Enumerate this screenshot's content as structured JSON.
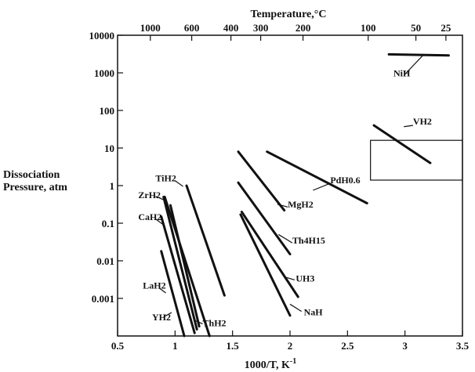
{
  "chart_data": {
    "type": "line",
    "title": "",
    "xlabel": "1000/T, K",
    "xlabel_superscript": "-1",
    "top_xlabel": "Temperature,°C",
    "ylabel_lines": [
      "Dissociation",
      "Pressure, atm"
    ],
    "xlim": [
      0.5,
      3.5
    ],
    "ylim_log10": [
      -4,
      4
    ],
    "y_scale": "log",
    "grid": false,
    "x_ticks": [
      "0.5",
      "1",
      "1.5",
      "2",
      "2.5",
      "3",
      "3.5"
    ],
    "x_tick_values": [
      0.5,
      1,
      1.5,
      2,
      2.5,
      3,
      3.5
    ],
    "y_ticks": [
      "10000",
      "1000",
      "100",
      "10",
      "1",
      "0.1",
      "0.01",
      "0.001"
    ],
    "y_tick_values": [
      10000,
      1000,
      100,
      10,
      1,
      0.1,
      0.01,
      0.001
    ],
    "top_ticks": [
      {
        "label": "1000",
        "x": 0.785
      },
      {
        "label": "600",
        "x": 1.145
      },
      {
        "label": "400",
        "x": 1.486
      },
      {
        "label": "300",
        "x": 1.745
      },
      {
        "label": "200",
        "x": 2.113
      },
      {
        "label": "100",
        "x": 2.68
      },
      {
        "label": "50",
        "x": 3.095
      },
      {
        "label": "25",
        "x": 3.356
      }
    ],
    "series": [
      {
        "name": "NiH",
        "points": [
          [
            2.86,
            3100
          ],
          [
            3.38,
            2900
          ]
        ],
        "label_at": [
          2.9,
          800
        ],
        "leader": [
          [
            3.0,
            920
          ],
          [
            3.16,
            3000
          ]
        ]
      },
      {
        "name": "VH2",
        "points": [
          [
            2.73,
            40
          ],
          [
            3.22,
            4
          ]
        ],
        "label_at": [
          3.07,
          42
        ],
        "leader": [
          [
            2.99,
            37
          ],
          [
            3.07,
            40
          ]
        ]
      },
      {
        "name": "PdH0.6",
        "points": [
          [
            1.8,
            8
          ],
          [
            2.67,
            0.34
          ]
        ],
        "label_at": [
          2.35,
          1.15
        ],
        "leader": [
          [
            2.2,
            0.75
          ],
          [
            2.35,
            1.15
          ]
        ]
      },
      {
        "name": "MgH2",
        "points": [
          [
            1.55,
            8
          ],
          [
            1.95,
            0.22
          ]
        ],
        "label_at": [
          1.98,
          0.26
        ],
        "leader": [
          [
            1.89,
            0.32
          ],
          [
            1.98,
            0.27
          ]
        ]
      },
      {
        "name": "Th4H15",
        "points": [
          [
            1.55,
            1.2
          ],
          [
            2.0,
            0.015
          ]
        ],
        "label_at": [
          2.02,
          0.029
        ],
        "leader": [
          [
            1.9,
            0.05
          ],
          [
            2.02,
            0.03
          ]
        ]
      },
      {
        "name": "UH3",
        "points": [
          [
            1.58,
            0.2
          ],
          [
            2.07,
            0.0011
          ]
        ],
        "label_at": [
          2.05,
          0.0028
        ],
        "leader": [
          [
            1.97,
            0.0036
          ],
          [
            2.04,
            0.0031
          ]
        ]
      },
      {
        "name": "NaH",
        "points": [
          [
            1.57,
            0.17
          ],
          [
            2.0,
            0.00035
          ]
        ],
        "label_at": [
          2.12,
          0.00036
        ],
        "leader": [
          [
            2.0,
            0.0007
          ],
          [
            2.1,
            0.00045
          ]
        ]
      },
      {
        "name": "TiH2",
        "points": [
          [
            1.1,
            1.0
          ],
          [
            1.43,
            0.0012
          ]
        ],
        "label_at": [
          0.83,
          1.3
        ],
        "leader": [
          [
            1.0,
            1.35
          ],
          [
            1.07,
            0.95
          ]
        ]
      },
      {
        "name": "ZrH2",
        "points": [
          [
            0.9,
            0.5
          ],
          [
            1.19,
            0.00015
          ]
        ],
        "label_at": [
          0.68,
          0.46
        ],
        "leader": [
          [
            0.83,
            0.52
          ],
          [
            0.9,
            0.42
          ]
        ]
      },
      {
        "name": "CaH2",
        "points": [
          [
            0.88,
            0.15
          ],
          [
            1.17,
            0.00012
          ]
        ],
        "label_at": [
          0.68,
          0.12
        ],
        "leader": [
          [
            0.83,
            0.13
          ],
          [
            0.9,
            0.09
          ]
        ]
      },
      {
        "name": "LaH2",
        "points": [
          [
            0.88,
            0.018
          ],
          [
            1.08,
            0.0001
          ]
        ],
        "label_at": [
          0.72,
          0.0018
        ],
        "leader": [
          [
            0.86,
            0.0019
          ],
          [
            0.92,
            0.0014
          ]
        ]
      },
      {
        "name": "YH2",
        "points": [
          [
            0.91,
            0.5
          ],
          [
            1.3,
            0.0001
          ]
        ],
        "label_at": [
          0.8,
          0.00026
        ],
        "leader": [
          [
            0.9,
            0.00032
          ],
          [
            0.97,
            0.00042
          ]
        ]
      },
      {
        "name": "ThH2",
        "points": [
          [
            0.96,
            0.3
          ],
          [
            1.21,
            0.00018
          ]
        ],
        "label_at": [
          1.24,
          0.00018
        ],
        "leader": [
          [
            1.17,
            0.00026
          ],
          [
            1.24,
            0.00021
          ]
        ]
      }
    ],
    "shaded_box": {
      "x": [
        2.7,
        3.5
      ],
      "y": [
        1.4,
        16
      ]
    }
  }
}
